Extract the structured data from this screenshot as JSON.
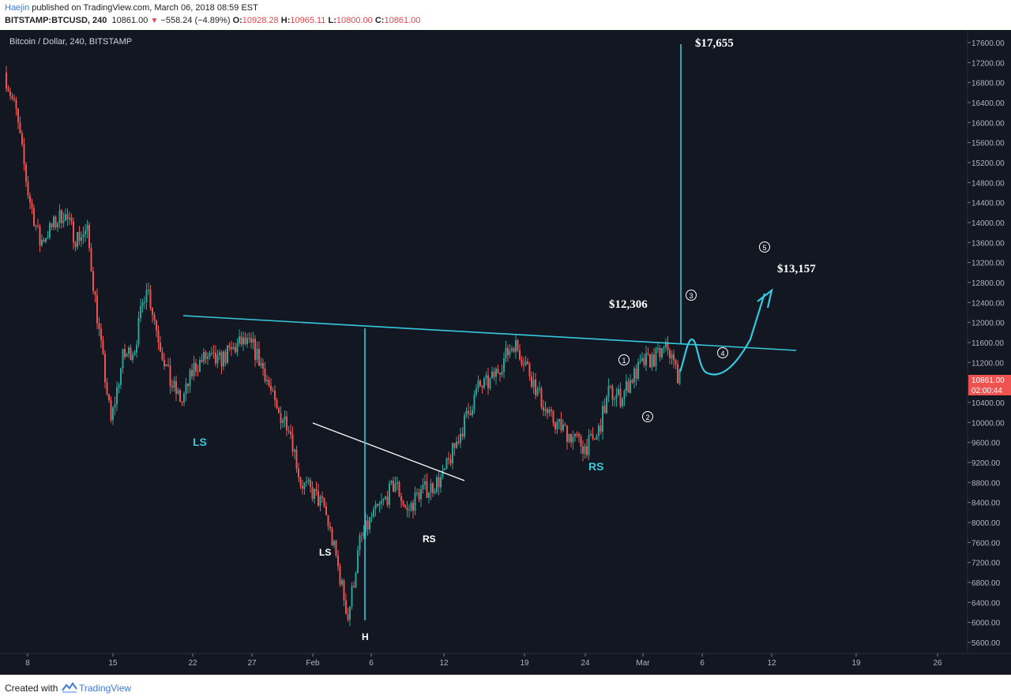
{
  "header": {
    "author": "Haejin",
    "published_text": "published on TradingView.com, March 06, 2018 08:59 EST",
    "symbol_interval": "BITSTAMP:BTCUSD, 240",
    "last": "10861.00",
    "change": "−558.24 (−4.89%)",
    "o_label": "O:",
    "o_value": "10928.28",
    "h_label": "H:",
    "h_value": "10965.11",
    "l_label": "L:",
    "l_value": "10800.00",
    "c_label": "C:",
    "c_value": "10861.00",
    "change_icon": "down-triangle-icon"
  },
  "footer": {
    "created_with": "Created with",
    "brand": "TradingView",
    "logo_icon": "tradingview-logo-icon"
  },
  "colors": {
    "background": "#131722",
    "up": "#26a69a",
    "down": "#ef5350",
    "annotation": "#38c8dd",
    "white_annotation": "#ffffff",
    "price_tag": "#ef5350"
  },
  "chart_data": {
    "type": "candlestick",
    "title": "Bitcoin / Dollar, 240, BITSTAMP",
    "ylim": [
      5200,
      18000
    ],
    "y_ticks": [
      "17600.00",
      "17200.00",
      "16800.00",
      "16400.00",
      "16000.00",
      "15600.00",
      "15200.00",
      "14800.00",
      "14400.00",
      "14000.00",
      "13600.00",
      "13200.00",
      "12800.00",
      "12400.00",
      "12000.00",
      "11600.00",
      "11200.00",
      "10400.00",
      "10000.00",
      "9600.00",
      "9200.00",
      "8800.00",
      "8400.00",
      "8000.00",
      "7600.00",
      "7200.00",
      "6800.00",
      "6400.00",
      "6000.00",
      "5600.00"
    ],
    "x_ticks": [
      "8",
      "15",
      "22",
      "27",
      "Feb",
      "6",
      "12",
      "19",
      "24",
      "Mar",
      "6",
      "12",
      "19",
      "26"
    ],
    "last_price_tag": "10861.00",
    "countdown_tag": "02:00:44",
    "price_path": [
      [
        "Jan 8",
        17000
      ],
      [
        "Jan 9",
        16200
      ],
      [
        "Jan 10",
        14600
      ],
      [
        "Jan 11",
        13600
      ],
      [
        "Jan 12",
        13900
      ],
      [
        "Jan 13",
        14200
      ],
      [
        "Jan 14",
        13700
      ],
      [
        "Jan 15",
        13800
      ],
      [
        "Jan 16",
        11800
      ],
      [
        "Jan 17",
        10000
      ],
      [
        "Jan 18",
        11300
      ],
      [
        "Jan 19",
        11500
      ],
      [
        "Jan 20",
        12800
      ],
      [
        "Jan 21",
        11700
      ],
      [
        "Jan 22",
        10800
      ],
      [
        "Jan 23",
        10400
      ],
      [
        "Jan 24",
        11100
      ],
      [
        "Jan 25",
        11300
      ],
      [
        "Jan 26",
        11200
      ],
      [
        "Jan 27",
        11400
      ],
      [
        "Jan 28",
        11600
      ],
      [
        "Jan 29",
        11500
      ],
      [
        "Jan 30",
        11000
      ],
      [
        "Jan 31",
        10200
      ],
      [
        "Feb 1",
        10000
      ],
      [
        "Feb 2",
        8800
      ],
      [
        "Feb 3",
        8600
      ],
      [
        "Feb 4",
        8300
      ],
      [
        "Feb 5",
        7300
      ],
      [
        "Feb 6",
        6100
      ],
      [
        "Feb 7",
        7600
      ],
      [
        "Feb 8",
        8100
      ],
      [
        "Feb 9",
        8400
      ],
      [
        "Feb 10",
        8800
      ],
      [
        "Feb 11",
        8200
      ],
      [
        "Feb 12",
        8600
      ],
      [
        "Feb 13",
        8700
      ],
      [
        "Feb 14",
        8900
      ],
      [
        "Feb 15",
        9500
      ],
      [
        "Feb 16",
        10100
      ],
      [
        "Feb 17",
        10700
      ],
      [
        "Feb 18",
        10800
      ],
      [
        "Feb 19",
        11200
      ],
      [
        "Feb 20",
        11600
      ],
      [
        "Feb 21",
        11200
      ],
      [
        "Feb 22",
        10600
      ],
      [
        "Feb 23",
        10100
      ],
      [
        "Feb 24",
        9900
      ],
      [
        "Feb 25",
        9700
      ],
      [
        "Feb 26",
        9500
      ],
      [
        "Feb 27",
        9700
      ],
      [
        "Feb 28",
        10600
      ],
      [
        "Mar 1",
        10500
      ],
      [
        "Mar 2",
        10900
      ],
      [
        "Mar 3",
        11200
      ],
      [
        "Mar 4",
        11300
      ],
      [
        "Mar 5",
        11500
      ],
      [
        "Mar 6",
        10861
      ]
    ],
    "annotations": {
      "price_17655": "$17,655",
      "price_12306": "$12,306",
      "price_13157": "$13,157",
      "ls_cyan": "LS",
      "rs_cyan": "RS",
      "ls_white": "LS",
      "rs_white": "RS",
      "h_white": "H",
      "wave_1": "1",
      "wave_2": "2",
      "wave_3": "3",
      "wave_4": "4",
      "wave_5": "5"
    }
  }
}
